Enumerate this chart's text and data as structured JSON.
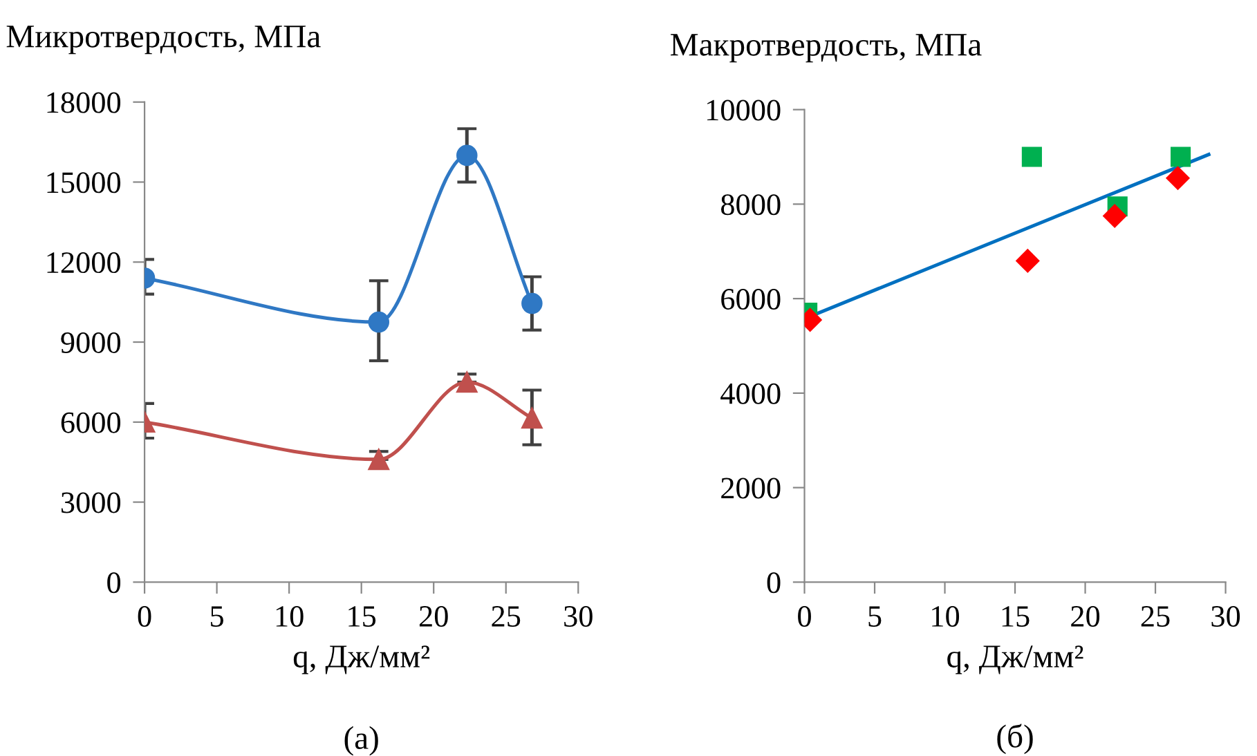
{
  "chart_data": [
    {
      "type": "line",
      "ylabel": "Микротвердость, МПа",
      "xlabel": "q, Дж/мм²",
      "annotations": [
        "(а)"
      ],
      "x": [
        0,
        16.2,
        22.3,
        26.8
      ],
      "xlim": [
        0,
        30
      ],
      "xticks": [
        0,
        5,
        10,
        15,
        20,
        25,
        30
      ],
      "ylim": [
        0,
        18000
      ],
      "yticks": [
        0,
        3000,
        6000,
        9000,
        12000,
        15000,
        18000
      ],
      "grid": false,
      "legend": false,
      "series": [
        {
          "color": "#2f78c4",
          "marker": "circle",
          "values": [
            11400,
            9750,
            16000,
            10450
          ],
          "errors": [
            [
              10800,
              12100
            ],
            [
              8300,
              11300
            ],
            [
              15000,
              17000
            ],
            [
              9450,
              11450
            ]
          ]
        },
        {
          "color": "#c0504d",
          "marker": "triangle",
          "values": [
            6000,
            4600,
            7500,
            6150
          ],
          "errors": [
            [
              5400,
              6700
            ],
            [
              4600,
              4900
            ],
            [
              7500,
              7800
            ],
            [
              5150,
              7200
            ]
          ]
        }
      ]
    },
    {
      "type": "scatter",
      "ylabel": "Макротвердость, МПа",
      "xlabel": "q, Дж/мм²",
      "annotations": [
        "(б)"
      ],
      "xlim": [
        0,
        30
      ],
      "xticks": [
        0,
        5,
        10,
        15,
        20,
        25,
        30
      ],
      "ylim": [
        0,
        10000
      ],
      "yticks": [
        0,
        2000,
        4000,
        6000,
        8000,
        10000
      ],
      "grid": false,
      "legend": false,
      "series": [
        {
          "type": "scatter",
          "color": "#00b050",
          "marker": "square",
          "x": [
            0.2,
            16.2,
            22.3,
            26.8
          ],
          "values": [
            5700,
            9000,
            7950,
            9000
          ]
        },
        {
          "type": "scatter",
          "color": "#ff0000",
          "marker": "diamond",
          "x": [
            0.4,
            15.9,
            22.1,
            26.6
          ],
          "values": [
            5550,
            6800,
            7750,
            8550
          ]
        },
        {
          "type": "line",
          "color": "#0070c0",
          "marker": "none",
          "x": [
            0.2,
            28.8
          ],
          "values": [
            5600,
            9050
          ]
        }
      ]
    }
  ]
}
